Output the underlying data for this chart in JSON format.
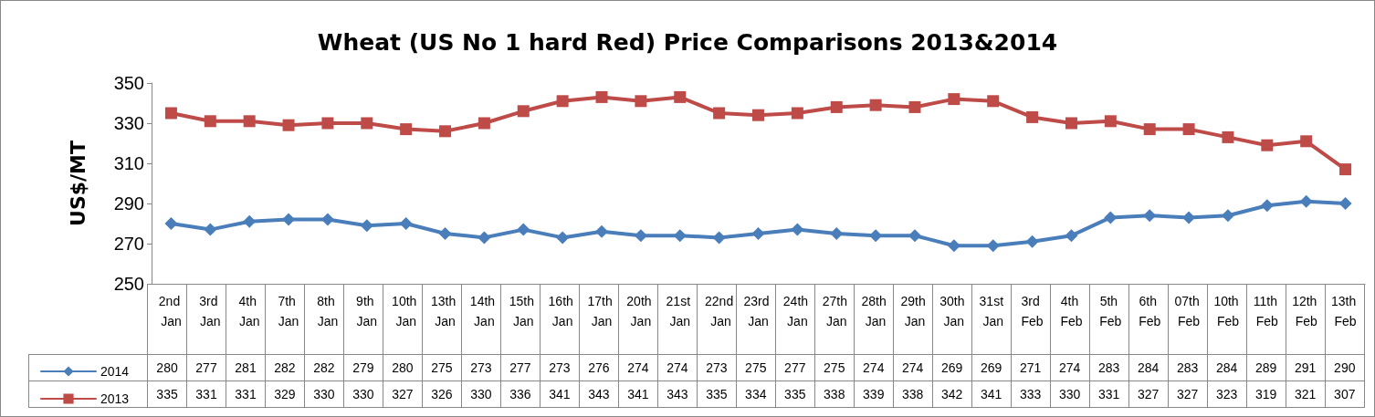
{
  "chart_data": {
    "type": "line",
    "title": "Wheat (US No 1 hard Red) Price Comparisons 2013&2014",
    "ylabel": "US$/MT",
    "categories": [
      "2nd Jan",
      "3rd Jan",
      "4th Jan",
      "7th Jan",
      "8th Jan",
      "9th Jan",
      "10th Jan",
      "13th Jan",
      "14th Jan",
      "15th Jan",
      "16th Jan",
      "17th Jan",
      "20th Jan",
      "21st Jan",
      "22nd Jan",
      "23rd Jan",
      "24th Jan",
      "27th Jan",
      "28th Jan",
      "29th Jan",
      "30th Jan",
      "31st Jan",
      "3rd Feb",
      "4th Feb",
      "5th Feb",
      "6th Feb",
      "07th Feb",
      "10th Feb",
      "11th Feb",
      "12th Feb",
      "13th Feb"
    ],
    "series": [
      {
        "name": "2014",
        "color": "#4a7ebb",
        "marker": "diamond",
        "values": [
          280,
          277,
          281,
          282,
          282,
          279,
          280,
          275,
          273,
          277,
          273,
          276,
          274,
          274,
          273,
          275,
          277,
          275,
          274,
          274,
          269,
          269,
          271,
          274,
          283,
          284,
          283,
          284,
          289,
          291,
          290
        ]
      },
      {
        "name": "2013",
        "color": "#be4b48",
        "marker": "square",
        "values": [
          335,
          331,
          331,
          329,
          330,
          330,
          327,
          326,
          330,
          336,
          341,
          343,
          341,
          343,
          335,
          334,
          335,
          338,
          339,
          338,
          342,
          341,
          333,
          330,
          331,
          327,
          327,
          323,
          319,
          321,
          307
        ]
      }
    ],
    "ylim": [
      250,
      350
    ],
    "yticks": [
      250,
      270,
      290,
      310,
      330,
      350
    ],
    "grid": false,
    "legend": "bottom",
    "data_labels": true,
    "line_style": "solid"
  }
}
